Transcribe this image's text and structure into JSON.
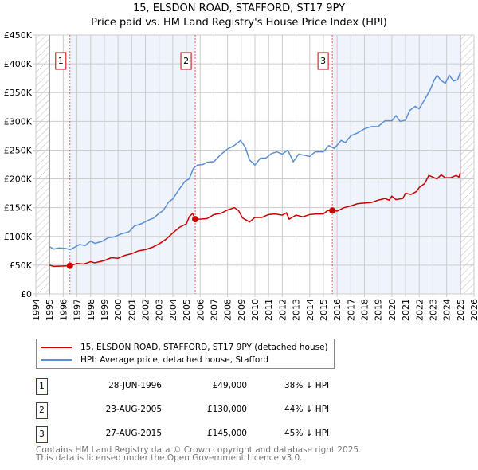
{
  "chart_data": {
    "type": "line",
    "title": "15, ELSDON ROAD, STAFFORD, ST17 9PY",
    "subtitle": "Price paid vs. HM Land Registry's House Price Index (HPI)",
    "xlim": [
      1994,
      2026
    ],
    "ylim": [
      0,
      450000
    ],
    "x_ticks": [
      "1994",
      "1995",
      "1996",
      "1997",
      "1998",
      "1999",
      "2000",
      "2001",
      "2002",
      "2003",
      "2004",
      "2005",
      "2006",
      "2007",
      "2008",
      "2009",
      "2010",
      "2011",
      "2012",
      "2013",
      "2014",
      "2015",
      "2016",
      "2017",
      "2018",
      "2019",
      "2020",
      "2021",
      "2022",
      "2023",
      "2024",
      "2025",
      "2026"
    ],
    "y_ticks": [
      {
        "v": 0,
        "label": "£0"
      },
      {
        "v": 50000,
        "label": "£50K"
      },
      {
        "v": 100000,
        "label": "£100K"
      },
      {
        "v": 150000,
        "label": "£150K"
      },
      {
        "v": 200000,
        "label": "£200K"
      },
      {
        "v": 250000,
        "label": "£250K"
      },
      {
        "v": 300000,
        "label": "£300K"
      },
      {
        "v": 350000,
        "label": "£350K"
      },
      {
        "v": 400000,
        "label": "£400K"
      },
      {
        "v": 450000,
        "label": "£450K"
      }
    ],
    "series": [
      {
        "name": "15, ELSDON ROAD, STAFFORD, ST17 9PY (detached house)",
        "color": "#cc0000",
        "points": [
          [
            1995,
            50
          ],
          [
            1995.3,
            48
          ],
          [
            1996.49,
            49
          ],
          [
            1997,
            53
          ],
          [
            1997.5,
            52
          ],
          [
            1998,
            56
          ],
          [
            1998.3,
            54
          ],
          [
            1999,
            58
          ],
          [
            1999.5,
            63
          ],
          [
            2000,
            62
          ],
          [
            2000.5,
            67
          ],
          [
            2001,
            70
          ],
          [
            2001.5,
            75
          ],
          [
            2002,
            77
          ],
          [
            2002.5,
            81
          ],
          [
            2003,
            87
          ],
          [
            2003.5,
            95
          ],
          [
            2004,
            106
          ],
          [
            2004.5,
            116
          ],
          [
            2005,
            122
          ],
          [
            2005.2,
            134
          ],
          [
            2005.45,
            140
          ],
          [
            2005.64,
            130
          ],
          [
            2006,
            130
          ],
          [
            2006.5,
            131
          ],
          [
            2007,
            138
          ],
          [
            2007.5,
            140
          ],
          [
            2008,
            146
          ],
          [
            2008.5,
            150
          ],
          [
            2008.8,
            145
          ],
          [
            2009.1,
            132
          ],
          [
            2009.4,
            128
          ],
          [
            2009.6,
            125
          ],
          [
            2010,
            133
          ],
          [
            2010.5,
            133
          ],
          [
            2011,
            138
          ],
          [
            2011.5,
            139
          ],
          [
            2012,
            137
          ],
          [
            2012.3,
            141
          ],
          [
            2012.5,
            130
          ],
          [
            2013,
            137
          ],
          [
            2013.5,
            134
          ],
          [
            2014,
            138
          ],
          [
            2014.5,
            139
          ],
          [
            2015,
            139
          ],
          [
            2015.3,
            145
          ],
          [
            2015.65,
            145
          ],
          [
            2016,
            144
          ],
          [
            2016.5,
            150
          ],
          [
            2017,
            153
          ],
          [
            2017.5,
            157
          ],
          [
            2018,
            158
          ],
          [
            2018.5,
            159
          ],
          [
            2019,
            163
          ],
          [
            2019.5,
            166
          ],
          [
            2019.8,
            163
          ],
          [
            2020,
            170
          ],
          [
            2020.3,
            164
          ],
          [
            2020.8,
            166
          ],
          [
            2021,
            175
          ],
          [
            2021.4,
            173
          ],
          [
            2021.8,
            178
          ],
          [
            2022,
            185
          ],
          [
            2022.4,
            192
          ],
          [
            2022.7,
            206
          ],
          [
            2023,
            203
          ],
          [
            2023.3,
            200
          ],
          [
            2023.6,
            207
          ],
          [
            2023.9,
            202
          ],
          [
            2024.3,
            202
          ],
          [
            2024.7,
            206
          ],
          [
            2024.9,
            203
          ],
          [
            2025,
            211
          ]
        ]
      },
      {
        "name": "HPI: Average price, detached house, Stafford",
        "color": "#5b8fd4",
        "points": [
          [
            1995,
            82
          ],
          [
            1995.3,
            78
          ],
          [
            1995.7,
            80
          ],
          [
            1996.2,
            79
          ],
          [
            1996.5,
            77
          ],
          [
            1996.9,
            82
          ],
          [
            1997.2,
            86
          ],
          [
            1997.6,
            84
          ],
          [
            1998,
            92
          ],
          [
            1998.3,
            88
          ],
          [
            1998.8,
            91
          ],
          [
            1999.3,
            98
          ],
          [
            1999.7,
            99
          ],
          [
            2000.2,
            104
          ],
          [
            2000.8,
            108
          ],
          [
            2001.2,
            118
          ],
          [
            2001.7,
            122
          ],
          [
            2002.2,
            128
          ],
          [
            2002.6,
            132
          ],
          [
            2003,
            140
          ],
          [
            2003.3,
            145
          ],
          [
            2003.7,
            160
          ],
          [
            2004,
            165
          ],
          [
            2004.5,
            183
          ],
          [
            2004.9,
            196
          ],
          [
            2005.2,
            200
          ],
          [
            2005.5,
            218
          ],
          [
            2005.8,
            224
          ],
          [
            2006.2,
            225
          ],
          [
            2006.5,
            229
          ],
          [
            2007,
            230
          ],
          [
            2007.5,
            242
          ],
          [
            2008,
            252
          ],
          [
            2008.5,
            258
          ],
          [
            2008.95,
            267
          ],
          [
            2009.3,
            255
          ],
          [
            2009.6,
            233
          ],
          [
            2010,
            224
          ],
          [
            2010.4,
            236
          ],
          [
            2010.8,
            236
          ],
          [
            2011.2,
            244
          ],
          [
            2011.6,
            247
          ],
          [
            2012,
            243
          ],
          [
            2012.4,
            250
          ],
          [
            2012.8,
            230
          ],
          [
            2013.2,
            243
          ],
          [
            2013.6,
            241
          ],
          [
            2014,
            239
          ],
          [
            2014.4,
            247
          ],
          [
            2015,
            247
          ],
          [
            2015.4,
            258
          ],
          [
            2015.8,
            253
          ],
          [
            2016.3,
            267
          ],
          [
            2016.6,
            263
          ],
          [
            2017,
            275
          ],
          [
            2017.5,
            280
          ],
          [
            2018,
            287
          ],
          [
            2018.5,
            291
          ],
          [
            2019,
            291
          ],
          [
            2019.5,
            301
          ],
          [
            2020,
            301
          ],
          [
            2020.3,
            310
          ],
          [
            2020.6,
            300
          ],
          [
            2021,
            302
          ],
          [
            2021.3,
            319
          ],
          [
            2021.7,
            326
          ],
          [
            2022,
            322
          ],
          [
            2022.4,
            338
          ],
          [
            2022.8,
            355
          ],
          [
            2023.1,
            372
          ],
          [
            2023.3,
            380
          ],
          [
            2023.6,
            371
          ],
          [
            2023.9,
            366
          ],
          [
            2024.2,
            380
          ],
          [
            2024.5,
            370
          ],
          [
            2024.8,
            372
          ],
          [
            2025,
            385
          ]
        ]
      }
    ],
    "sales": [
      {
        "n": "1",
        "x": 1996.49,
        "y": 49
      },
      {
        "n": "2",
        "x": 2005.64,
        "y": 130
      },
      {
        "n": "3",
        "x": 2015.65,
        "y": 145
      }
    ],
    "grid": true,
    "legend_position": "below"
  },
  "sales_table": [
    {
      "n": "1",
      "date": "28-JUN-1996",
      "price": "£49,000",
      "hpi": "38% ↓ HPI"
    },
    {
      "n": "2",
      "date": "23-AUG-2005",
      "price": "£130,000",
      "hpi": "44% ↓ HPI"
    },
    {
      "n": "3",
      "date": "27-AUG-2015",
      "price": "£145,000",
      "hpi": "45% ↓ HPI"
    }
  ],
  "footer": {
    "line1": "Contains HM Land Registry data © Crown copyright and database right 2025.",
    "line2": "This data is licensed under the Open Government Licence v3.0."
  },
  "colors": {
    "red": "#cc0000",
    "blue": "#5b8fd4",
    "shade": "#eef3fc"
  }
}
